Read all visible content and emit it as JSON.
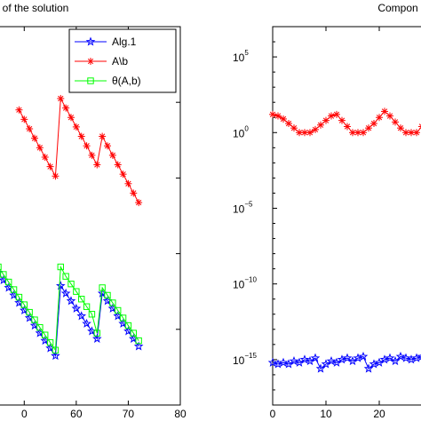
{
  "chart_data": [
    {
      "type": "line",
      "title": "of the solution",
      "xlabel": "",
      "ylabel": "",
      "xlim": [
        45,
        80
      ],
      "ylim": [
        0,
        20
      ],
      "x_ticks": [
        "0",
        "60",
        "70",
        "80"
      ],
      "grid": false,
      "legend": {
        "placement": "top-right",
        "entries": [
          "Alg.1",
          "A\\b",
          "θ(A,b)"
        ]
      },
      "series": [
        {
          "name": "Alg.1",
          "color": "#0000ff",
          "marker": "star",
          "x": [
            45,
            46,
            47,
            48,
            49,
            50,
            51,
            52,
            53,
            54,
            55,
            56,
            57,
            58,
            59,
            60,
            61,
            62,
            63,
            64,
            65,
            66,
            67,
            68,
            69,
            70,
            71,
            72
          ],
          "y": [
            7.0,
            6.6,
            6.2,
            5.8,
            5.4,
            5.0,
            4.6,
            4.2,
            3.8,
            3.4,
            3.0,
            2.6,
            6.3,
            5.9,
            5.5,
            5.1,
            4.7,
            4.3,
            3.9,
            3.5,
            5.9,
            5.5,
            5.1,
            4.7,
            4.3,
            3.9,
            3.5,
            3.1
          ]
        },
        {
          "name": "A\\b",
          "color": "#ff0000",
          "marker": "asterisk",
          "x": [
            49,
            50,
            51,
            52,
            53,
            54,
            55,
            56,
            57,
            58,
            59,
            60,
            61,
            62,
            63,
            64,
            65,
            66,
            67,
            68,
            69,
            70,
            71,
            72
          ],
          "y": [
            15.6,
            15.1,
            14.6,
            14.1,
            13.6,
            13.1,
            12.6,
            12.1,
            16.2,
            15.7,
            15.2,
            14.7,
            14.2,
            13.7,
            13.2,
            12.7,
            14.2,
            13.7,
            13.2,
            12.7,
            12.2,
            11.7,
            11.2,
            10.7
          ]
        },
        {
          "name": "θ(A,b)",
          "color": "#00ff00",
          "marker": "square",
          "x": [
            45,
            46,
            47,
            48,
            49,
            50,
            51,
            52,
            53,
            54,
            55,
            56,
            57,
            58,
            59,
            60,
            61,
            62,
            63,
            64,
            65,
            66,
            67,
            68,
            69,
            70,
            71,
            72
          ],
          "y": [
            7.3,
            6.9,
            6.5,
            6.1,
            5.7,
            5.3,
            4.9,
            4.5,
            4.1,
            3.7,
            3.3,
            2.9,
            7.3,
            6.8,
            6.4,
            6.0,
            5.6,
            5.2,
            4.8,
            3.8,
            6.2,
            5.8,
            5.4,
            5.0,
            4.6,
            4.2,
            3.8,
            3.4
          ]
        }
      ]
    },
    {
      "type": "line",
      "title": "Compon",
      "xlabel": "",
      "ylabel": "",
      "xlim": [
        0,
        30
      ],
      "ylim_log10": [
        -18,
        7
      ],
      "y_scale": "log",
      "y_ticks": [
        {
          "base": "10",
          "exp": "5"
        },
        {
          "base": "10",
          "exp": "0"
        },
        {
          "base": "10",
          "exp": "−5"
        },
        {
          "base": "10",
          "exp": "−10"
        },
        {
          "base": "10",
          "exp": "−15"
        }
      ],
      "x_ticks": [
        "0",
        "10",
        "20"
      ],
      "grid": false,
      "series": [
        {
          "name": "",
          "color": "#ff0000",
          "marker": "asterisk",
          "x": [
            0,
            1,
            2,
            3,
            4,
            5,
            6,
            7,
            8,
            9,
            10,
            11,
            12,
            13,
            14,
            15,
            16,
            17,
            18,
            19,
            20,
            21,
            22,
            23,
            24,
            25,
            26,
            27,
            28,
            29
          ],
          "y_log10": [
            1.2,
            1.1,
            0.9,
            0.6,
            0.3,
            0.0,
            0.0,
            0.0,
            0.2,
            0.5,
            0.8,
            1.1,
            1.2,
            0.8,
            0.4,
            0.0,
            0.0,
            0.0,
            0.3,
            0.6,
            1.0,
            1.4,
            1.1,
            0.7,
            0.3,
            0.0,
            0.0,
            0.0,
            0.4,
            0.9
          ]
        },
        {
          "name": "",
          "color": "#0000ff",
          "marker": "star",
          "x": [
            0,
            1,
            2,
            3,
            4,
            5,
            6,
            7,
            8,
            9,
            10,
            11,
            12,
            13,
            14,
            15,
            16,
            17,
            18,
            19,
            20,
            21,
            22,
            23,
            24,
            25,
            26,
            27,
            28,
            29
          ],
          "y_log10": [
            -15.2,
            -15.3,
            -15.2,
            -15.3,
            -15.1,
            -15.2,
            -15.0,
            -15.1,
            -14.9,
            -15.6,
            -15.3,
            -15.1,
            -15.2,
            -15.0,
            -14.9,
            -15.1,
            -14.9,
            -14.8,
            -15.6,
            -15.3,
            -15.2,
            -15.0,
            -14.9,
            -15.1,
            -14.8,
            -14.9,
            -15.0,
            -14.9,
            -14.8,
            -14.7
          ]
        }
      ]
    }
  ]
}
